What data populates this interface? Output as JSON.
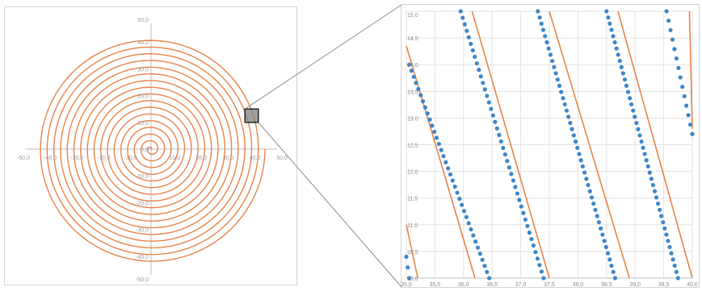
{
  "chart_data": [
    {
      "type": "line",
      "title": "",
      "description_series": "Archimedean spiral of concentric coils centered at origin",
      "spiral": {
        "start_radius": 0,
        "end_radius": 42.5,
        "pitch": 2.5,
        "color": "#e8834a"
      },
      "xlim": [
        -50,
        50
      ],
      "ylim": [
        -50,
        50
      ],
      "x_ticks": [
        "-50,0",
        "-40,0",
        "-30,0",
        "-20,0",
        "-10,0",
        "0,0",
        "10,0",
        "20,0",
        "30,0",
        "40,0",
        "50,0"
      ],
      "y_ticks": [
        "-50,0",
        "-40,0",
        "-30,0",
        "-20,0",
        "-10,0",
        "0,0",
        "10,0",
        "20,0",
        "30,0",
        "40,0",
        "50,0"
      ],
      "highlight_box": {
        "x": [
          35,
          40
        ],
        "y": [
          10,
          15
        ],
        "color": "#7f7f7f"
      },
      "grid": false,
      "axes_color": "#bfbfbf"
    },
    {
      "type": "scatter",
      "title": "",
      "xlim": [
        35.0,
        40.0
      ],
      "ylim": [
        10.0,
        15.0
      ],
      "x_ticks": [
        "35,0",
        "35,5",
        "36,0",
        "36,5",
        "37,0",
        "37,5",
        "38,0",
        "38,5",
        "39,0",
        "39,5",
        "40,0"
      ],
      "y_ticks": [
        "10,0",
        "10,5",
        "11,0",
        "11,5",
        "12,0",
        "12,5",
        "13,0",
        "13,5",
        "14,0",
        "14,5",
        "15,0"
      ],
      "grid": true,
      "lines": [
        {
          "color": "#e8834a",
          "points": [
            [
              35.0,
              11.0
            ],
            [
              35.2,
              10.0
            ]
          ]
        },
        {
          "color": "#e8834a",
          "points": [
            [
              35.0,
              14.35
            ],
            [
              36.2,
              10.0
            ]
          ]
        },
        {
          "color": "#e8834a",
          "points": [
            [
              36.15,
              15.0
            ],
            [
              37.5,
              10.0
            ]
          ]
        },
        {
          "color": "#e8834a",
          "points": [
            [
              37.5,
              15.0
            ],
            [
              38.9,
              10.0
            ]
          ]
        },
        {
          "color": "#e8834a",
          "points": [
            [
              38.7,
              15.0
            ],
            [
              40.0,
              10.0
            ]
          ]
        },
        {
          "color": "#e8834a",
          "points": [
            [
              39.95,
              15.0
            ],
            [
              40.0,
              12.8
            ]
          ]
        }
      ],
      "dot_series": [
        {
          "color": "#3e86c8",
          "start": [
            35.05,
            14.0
          ],
          "end": [
            36.45,
            10.0
          ],
          "count": 36
        },
        {
          "color": "#3e86c8",
          "start": [
            35.95,
            15.0
          ],
          "end": [
            37.4,
            10.0
          ],
          "count": 42
        },
        {
          "color": "#3e86c8",
          "start": [
            37.3,
            15.0
          ],
          "end": [
            38.65,
            10.0
          ],
          "count": 44
        },
        {
          "color": "#3e86c8",
          "start": [
            38.5,
            15.0
          ],
          "end": [
            39.75,
            10.0
          ],
          "count": 44
        },
        {
          "color": "#3e86c8",
          "start": [
            39.55,
            15.0
          ],
          "end": [
            40.0,
            12.7
          ],
          "count": 14
        },
        {
          "color": "#3e86c8",
          "start": [
            35.0,
            10.4
          ],
          "end": [
            35.05,
            10.0
          ],
          "count": 3
        }
      ]
    }
  ],
  "connector_color": "#8c8c8c"
}
